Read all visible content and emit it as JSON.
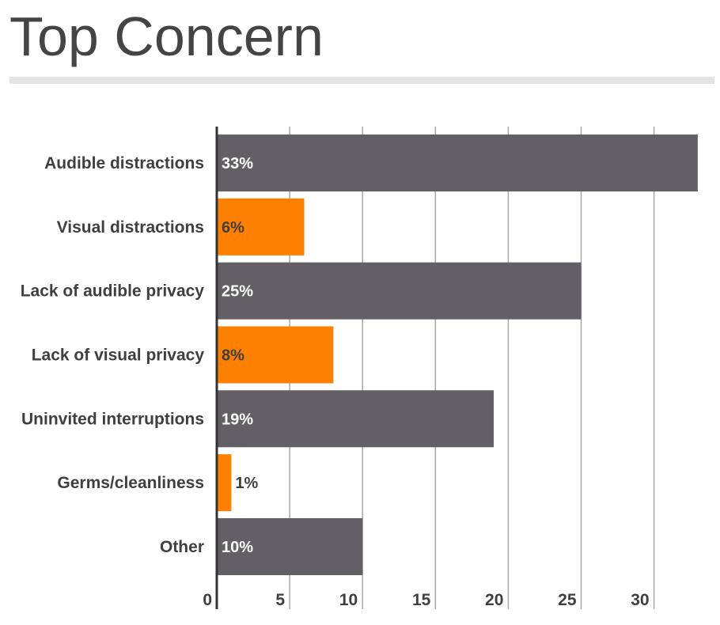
{
  "title": "Top Concern",
  "colors": {
    "primary_bar": "#625f65",
    "accent_bar": "#ff8000",
    "grid": "#a6a6a6",
    "axis": "#333333",
    "text": "#3f3f3f",
    "title_rule": "#e3e3e3"
  },
  "chart_data": {
    "type": "bar",
    "orientation": "horizontal",
    "title": "Top Concern",
    "categories": [
      "Audible distractions",
      "Visual distractions",
      "Lack of audible privacy",
      "Lack of visual privacy",
      "Uninvited interruptions",
      "Germs/cleanliness",
      "Other"
    ],
    "values": [
      33,
      6,
      25,
      8,
      19,
      1,
      10
    ],
    "data_labels": [
      "33%",
      "6%",
      "25%",
      "8%",
      "19%",
      "1%",
      "10%"
    ],
    "bar_colors": [
      "#625f65",
      "#ff8000",
      "#625f65",
      "#ff8000",
      "#625f65",
      "#ff8000",
      "#625f65"
    ],
    "xticks": [
      0,
      5,
      10,
      15,
      20,
      25,
      30
    ],
    "xlim": [
      0,
      33
    ],
    "xlabel": "",
    "ylabel": "",
    "grid": true,
    "legend": "none"
  }
}
